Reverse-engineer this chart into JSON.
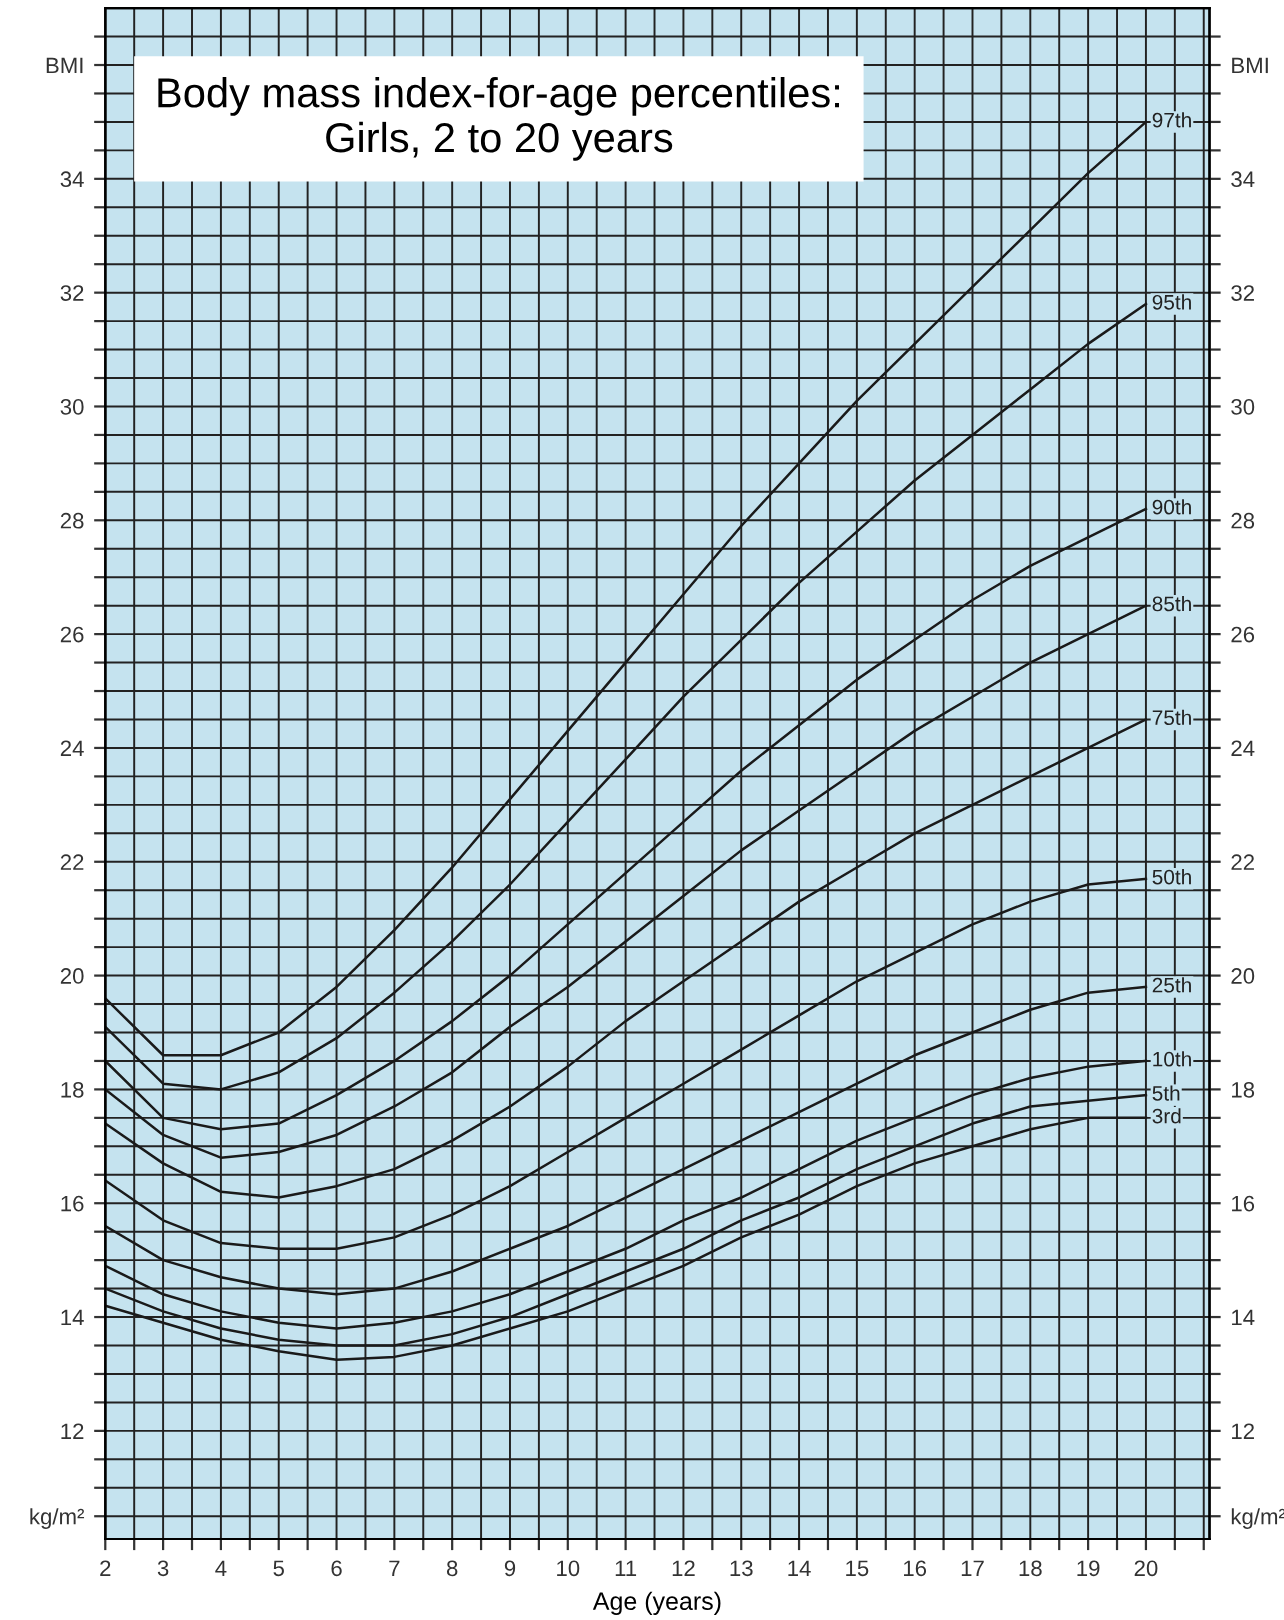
{
  "chart_data": {
    "type": "line",
    "title": "Body mass index-for-age percentiles:\nGirls, 2 to 20 years",
    "xlabel": "Age (years)",
    "x": [
      2,
      3,
      4,
      5,
      6,
      7,
      8,
      9,
      10,
      11,
      12,
      13,
      14,
      15,
      16,
      17,
      18,
      19,
      20
    ],
    "series": [
      {
        "name": "97th",
        "color": "#1a1a1a",
        "values": [
          19.6,
          18.6,
          18.6,
          19.0,
          19.8,
          20.8,
          21.9,
          23.1,
          24.3,
          25.5,
          26.7,
          27.9,
          29.0,
          30.1,
          31.1,
          32.1,
          33.1,
          34.1,
          35.0
        ]
      },
      {
        "name": "95th",
        "color": "#1a1a1a",
        "values": [
          19.1,
          18.1,
          18.0,
          18.3,
          18.9,
          19.7,
          20.6,
          21.6,
          22.7,
          23.8,
          24.9,
          25.9,
          26.9,
          27.8,
          28.7,
          29.5,
          30.3,
          31.1,
          31.8
        ]
      },
      {
        "name": "90th",
        "color": "#1a1a1a",
        "values": [
          18.5,
          17.5,
          17.3,
          17.4,
          17.9,
          18.5,
          19.2,
          20.0,
          20.9,
          21.8,
          22.7,
          23.6,
          24.4,
          25.2,
          25.9,
          26.6,
          27.2,
          27.7,
          28.2
        ]
      },
      {
        "name": "85th",
        "color": "#1a1a1a",
        "values": [
          18.0,
          17.2,
          16.8,
          16.9,
          17.2,
          17.7,
          18.3,
          19.1,
          19.8,
          20.6,
          21.4,
          22.2,
          22.9,
          23.6,
          24.3,
          24.9,
          25.5,
          26.0,
          26.5
        ]
      },
      {
        "name": "75th",
        "color": "#1a1a1a",
        "values": [
          17.4,
          16.7,
          16.2,
          16.1,
          16.3,
          16.6,
          17.1,
          17.7,
          18.4,
          19.2,
          19.9,
          20.6,
          21.3,
          21.9,
          22.5,
          23.0,
          23.5,
          24.0,
          24.5
        ]
      },
      {
        "name": "50th",
        "color": "#1a1a1a",
        "values": [
          16.4,
          15.7,
          15.3,
          15.2,
          15.2,
          15.4,
          15.8,
          16.3,
          16.9,
          17.5,
          18.1,
          18.7,
          19.3,
          19.9,
          20.4,
          20.9,
          21.3,
          21.6,
          21.7
        ]
      },
      {
        "name": "25th",
        "color": "#1a1a1a",
        "values": [
          15.6,
          15.0,
          14.7,
          14.5,
          14.4,
          14.5,
          14.8,
          15.2,
          15.6,
          16.1,
          16.6,
          17.1,
          17.6,
          18.1,
          18.6,
          19.0,
          19.4,
          19.7,
          19.8
        ]
      },
      {
        "name": "10th",
        "color": "#1a1a1a",
        "values": [
          14.9,
          14.4,
          14.1,
          13.9,
          13.8,
          13.9,
          14.1,
          14.4,
          14.8,
          15.2,
          15.7,
          16.1,
          16.6,
          17.1,
          17.5,
          17.9,
          18.2,
          18.4,
          18.5
        ]
      },
      {
        "name": "5th",
        "color": "#1a1a1a",
        "values": [
          14.5,
          14.1,
          13.8,
          13.6,
          13.5,
          13.5,
          13.7,
          14.0,
          14.4,
          14.8,
          15.2,
          15.7,
          16.1,
          16.6,
          17.0,
          17.4,
          17.7,
          17.8,
          17.9
        ]
      },
      {
        "name": "3rd",
        "color": "#1a1a1a",
        "values": [
          14.2,
          13.9,
          13.6,
          13.4,
          13.25,
          13.3,
          13.5,
          13.8,
          14.1,
          14.5,
          14.9,
          15.4,
          15.8,
          16.3,
          16.7,
          17.0,
          17.3,
          17.5,
          17.5
        ]
      }
    ],
    "xlim": [
      2,
      21.1
    ],
    "ylim": [
      10.1,
      37
    ],
    "y2lim": [
      10.1,
      37
    ],
    "xticks": [
      2,
      {
        "value": 2.5,
        "label": null
      },
      3,
      {
        "value": 3.5,
        "label": null
      },
      4,
      {
        "value": 4.5,
        "label": null
      },
      5,
      {
        "value": 5.5,
        "label": null
      },
      6,
      {
        "value": 6.5,
        "label": null
      },
      7,
      {
        "value": 7.5,
        "label": null
      },
      8,
      {
        "value": 8.5,
        "label": null
      },
      9,
      {
        "value": 9.5,
        "label": null
      },
      10,
      {
        "value": 10.5,
        "label": null
      },
      11,
      {
        "value": 11.5,
        "label": null
      },
      12,
      {
        "value": 12.5,
        "label": null
      },
      13,
      {
        "value": 13.5,
        "label": null
      },
      14,
      {
        "value": 14.5,
        "label": null
      },
      15,
      {
        "value": 15.5,
        "label": null
      },
      16,
      {
        "value": 16.5,
        "label": null
      },
      17,
      {
        "value": 17.5,
        "label": null
      },
      18,
      {
        "value": 18.5,
        "label": null
      },
      19,
      {
        "value": 19.5,
        "label": null
      },
      20,
      {
        "value": 20.5,
        "label": null
      },
      {
        "value": 21,
        "label": null
      }
    ],
    "yticks": [
      {
        "value": 10.5,
        "label": "kg/m²"
      },
      {
        "value": 11,
        "label": null
      },
      {
        "value": 11.5,
        "label": null
      },
      12,
      {
        "value": 12.5,
        "label": null
      },
      {
        "value": 13,
        "label": null
      },
      {
        "value": 13.5,
        "label": null
      },
      14,
      {
        "value": 14.5,
        "label": null
      },
      {
        "value": 15,
        "label": null
      },
      {
        "value": 15.5,
        "label": null
      },
      16,
      {
        "value": 16.5,
        "label": null
      },
      {
        "value": 17,
        "label": null
      },
      {
        "value": 17.5,
        "label": null
      },
      18,
      {
        "value": 18.5,
        "label": null
      },
      {
        "value": 19,
        "label": null
      },
      {
        "value": 19.5,
        "label": null
      },
      20,
      {
        "value": 20.5,
        "label": null
      },
      {
        "value": 21,
        "label": null
      },
      {
        "value": 21.5,
        "label": null
      },
      22,
      {
        "value": 22.5,
        "label": null
      },
      {
        "value": 23,
        "label": null
      },
      {
        "value": 23.5,
        "label": null
      },
      24,
      {
        "value": 24.5,
        "label": null
      },
      {
        "value": 25,
        "label": null
      },
      {
        "value": 25.5,
        "label": null
      },
      26,
      {
        "value": 26.5,
        "label": null
      },
      {
        "value": 27,
        "label": null
      },
      {
        "value": 27.5,
        "label": null
      },
      28,
      {
        "value": 28.5,
        "label": null
      },
      {
        "value": 29,
        "label": null
      },
      {
        "value": 29.5,
        "label": null
      },
      30,
      {
        "value": 30.5,
        "label": null
      },
      {
        "value": 31,
        "label": null
      },
      {
        "value": 31.5,
        "label": null
      },
      32,
      {
        "value": 32.5,
        "label": null
      },
      {
        "value": 33,
        "label": null
      },
      {
        "value": 33.5,
        "label": null
      },
      34,
      {
        "value": 34.5,
        "label": null
      },
      {
        "value": 35,
        "label": null
      },
      {
        "value": 35.5,
        "label": null
      },
      {
        "value": 36,
        "label": "BMI"
      },
      {
        "value": 36.5,
        "label": null
      }
    ],
    "y2ticks": [
      {
        "value": 10.5,
        "label": "kg/m²"
      },
      {
        "value": 11,
        "label": null
      },
      {
        "value": 11.5,
        "label": null
      },
      12,
      {
        "value": 12.5,
        "label": null
      },
      {
        "value": 13,
        "label": null
      },
      {
        "value": 13.5,
        "label": null
      },
      14,
      {
        "value": 14.5,
        "label": null
      },
      {
        "value": 15,
        "label": null
      },
      {
        "value": 15.5,
        "label": null
      },
      16,
      {
        "value": 16.5,
        "label": null
      },
      {
        "value": 17,
        "label": null
      },
      {
        "value": 17.5,
        "label": null
      },
      18,
      {
        "value": 18.5,
        "label": null
      },
      {
        "value": 19,
        "label": null
      },
      {
        "value": 19.5,
        "label": null
      },
      20,
      {
        "value": 20.5,
        "label": null
      },
      {
        "value": 21,
        "label": null
      },
      {
        "value": 21.5,
        "label": null
      },
      22,
      {
        "value": 22.5,
        "label": null
      },
      {
        "value": 23,
        "label": null
      },
      {
        "value": 23.5,
        "label": null
      },
      24,
      {
        "value": 24.5,
        "label": null
      },
      {
        "value": 25,
        "label": null
      },
      {
        "value": 25.5,
        "label": null
      },
      26,
      {
        "value": 26.5,
        "label": null
      },
      {
        "value": 27,
        "label": null
      },
      {
        "value": 27.5,
        "label": null
      },
      28,
      {
        "value": 28.5,
        "label": null
      },
      {
        "value": 29,
        "label": null
      },
      {
        "value": 29.5,
        "label": null
      },
      30,
      {
        "value": 30.5,
        "label": null
      },
      {
        "value": 31,
        "label": null
      },
      {
        "value": 31.5,
        "label": null
      },
      32,
      {
        "value": 32.5,
        "label": null
      },
      {
        "value": 33,
        "label": null
      },
      {
        "value": 33.5,
        "label": null
      },
      34,
      {
        "value": 34.5,
        "label": null
      },
      {
        "value": 35,
        "label": null
      },
      {
        "value": 35.5,
        "label": null
      },
      {
        "value": 36,
        "label": "BMI"
      },
      {
        "value": 36.5,
        "label": null
      }
    ],
    "grid": true,
    "legend": false,
    "marker": "none",
    "line_style": "solid"
  }
}
